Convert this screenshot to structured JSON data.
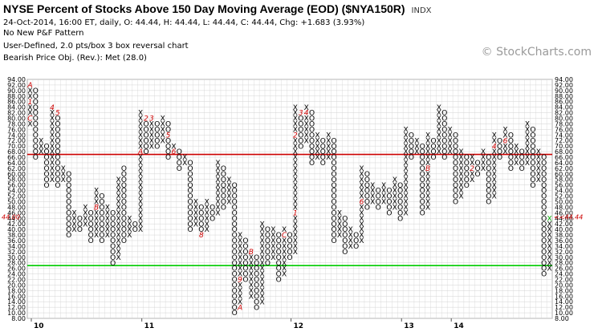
{
  "header": {
    "title": "NYSE Percent of Stocks Above 150 Day Moving Average (EOD) ($NYA150R)",
    "symbol": "INDX",
    "line2": "24-Oct-2014, 16:00 ET, daily, O: 44.44, H: 44.44, L: 44.44, C: 44.44, Chg: +1.683 (3.93%)",
    "line3": "No New P&F Pattern",
    "line4": "User-Defined, 2.0 pts/box 3 box reversal chart",
    "line5": "Bearish Price Obj. (Rev.): Met (28.0)",
    "watermark": "© StockCharts.com"
  },
  "chart_data": {
    "type": "point-and-figure",
    "box_size": 2.0,
    "reversal": 3,
    "ylim": [
      8,
      94
    ],
    "y_ticks": [
      "8.00",
      "10.00",
      "12.00",
      "14.00",
      "16.00",
      "18.00",
      "20.00",
      "22.00",
      "24.00",
      "26.00",
      "28.00",
      "30.00",
      "32.00",
      "34.00",
      "36.00",
      "38.00",
      "40.00",
      "42.00",
      "44.00",
      "46.00",
      "48.00",
      "50.00",
      "52.00",
      "54.00",
      "56.00",
      "58.00",
      "60.00",
      "62.00",
      "64.00",
      "66.00",
      "68.00",
      "70.00",
      "72.00",
      "74.00",
      "76.00",
      "78.00",
      "80.00",
      "82.00",
      "84.00",
      "86.00",
      "88.00",
      "90.00",
      "92.00",
      "94.00"
    ],
    "x_labels": [
      {
        "label": "10",
        "column": 0
      },
      {
        "label": "11",
        "column": 20
      },
      {
        "label": "12",
        "column": 47
      },
      {
        "label": "13",
        "column": 67
      },
      {
        "label": "14",
        "column": 76
      }
    ],
    "last_price_label": "44.00",
    "last_price_label_right": "44.44",
    "reference_lines": [
      {
        "value": 67,
        "color": "#cc0000"
      },
      {
        "value": 27,
        "color": "#00cc00"
      }
    ],
    "columns": [
      {
        "t": "X",
        "lo": 78,
        "hi": 92
      },
      {
        "t": "O",
        "lo": 66,
        "hi": 90
      },
      {
        "t": "X",
        "lo": 68,
        "hi": 72
      },
      {
        "t": "O",
        "lo": 56,
        "hi": 70
      },
      {
        "t": "X",
        "lo": 58,
        "hi": 84
      },
      {
        "t": "O",
        "lo": 56,
        "hi": 82
      },
      {
        "t": "X",
        "lo": 58,
        "hi": 62
      },
      {
        "t": "O",
        "lo": 38,
        "hi": 60
      },
      {
        "t": "X",
        "lo": 40,
        "hi": 46
      },
      {
        "t": "O",
        "lo": 40,
        "hi": 44
      },
      {
        "t": "X",
        "lo": 42,
        "hi": 48
      },
      {
        "t": "O",
        "lo": 36,
        "hi": 46
      },
      {
        "t": "X",
        "lo": 38,
        "hi": 54
      },
      {
        "t": "O",
        "lo": 36,
        "hi": 52
      },
      {
        "t": "X",
        "lo": 38,
        "hi": 48
      },
      {
        "t": "O",
        "lo": 28,
        "hi": 46
      },
      {
        "t": "X",
        "lo": 30,
        "hi": 58
      },
      {
        "t": "O",
        "lo": 36,
        "hi": 62
      },
      {
        "t": "X",
        "lo": 38,
        "hi": 44
      },
      {
        "t": "O",
        "lo": 40,
        "hi": 42
      },
      {
        "t": "X",
        "lo": 40,
        "hi": 82
      },
      {
        "t": "O",
        "lo": 68,
        "hi": 80
      },
      {
        "t": "X",
        "lo": 70,
        "hi": 80
      },
      {
        "t": "O",
        "lo": 70,
        "hi": 78
      },
      {
        "t": "X",
        "lo": 72,
        "hi": 80
      },
      {
        "t": "O",
        "lo": 66,
        "hi": 78
      },
      {
        "t": "X",
        "lo": 68,
        "hi": 70
      },
      {
        "t": "O",
        "lo": 62,
        "hi": 68
      },
      {
        "t": "X",
        "lo": 64,
        "hi": 66
      },
      {
        "t": "O",
        "lo": 40,
        "hi": 64
      },
      {
        "t": "X",
        "lo": 42,
        "hi": 50
      },
      {
        "t": "O",
        "lo": 38,
        "hi": 48
      },
      {
        "t": "X",
        "lo": 40,
        "hi": 50
      },
      {
        "t": "O",
        "lo": 44,
        "hi": 48
      },
      {
        "t": "X",
        "lo": 46,
        "hi": 64
      },
      {
        "t": "O",
        "lo": 48,
        "hi": 62
      },
      {
        "t": "X",
        "lo": 50,
        "hi": 58
      },
      {
        "t": "O",
        "lo": 10,
        "hi": 56
      },
      {
        "t": "X",
        "lo": 12,
        "hi": 38
      },
      {
        "t": "O",
        "lo": 22,
        "hi": 36
      },
      {
        "t": "X",
        "lo": 16,
        "hi": 32
      },
      {
        "t": "O",
        "lo": 12,
        "hi": 30
      },
      {
        "t": "X",
        "lo": 14,
        "hi": 42
      },
      {
        "t": "O",
        "lo": 28,
        "hi": 40
      },
      {
        "t": "X",
        "lo": 30,
        "hi": 40
      },
      {
        "t": "O",
        "lo": 22,
        "hi": 38
      },
      {
        "t": "X",
        "lo": 24,
        "hi": 40
      },
      {
        "t": "O",
        "lo": 30,
        "hi": 38
      },
      {
        "t": "X",
        "lo": 32,
        "hi": 84
      },
      {
        "t": "O",
        "lo": 70,
        "hi": 82
      },
      {
        "t": "X",
        "lo": 72,
        "hi": 84
      },
      {
        "t": "O",
        "lo": 64,
        "hi": 82
      },
      {
        "t": "X",
        "lo": 66,
        "hi": 74
      },
      {
        "t": "O",
        "lo": 64,
        "hi": 72
      },
      {
        "t": "X",
        "lo": 66,
        "hi": 74
      },
      {
        "t": "O",
        "lo": 36,
        "hi": 72
      },
      {
        "t": "X",
        "lo": 38,
        "hi": 46
      },
      {
        "t": "O",
        "lo": 32,
        "hi": 44
      },
      {
        "t": "X",
        "lo": 34,
        "hi": 40
      },
      {
        "t": "O",
        "lo": 34,
        "hi": 38
      },
      {
        "t": "X",
        "lo": 36,
        "hi": 62
      },
      {
        "t": "O",
        "lo": 48,
        "hi": 60
      },
      {
        "t": "X",
        "lo": 50,
        "hi": 56
      },
      {
        "t": "O",
        "lo": 48,
        "hi": 54
      },
      {
        "t": "X",
        "lo": 50,
        "hi": 56
      },
      {
        "t": "O",
        "lo": 46,
        "hi": 54
      },
      {
        "t": "X",
        "lo": 48,
        "hi": 58
      },
      {
        "t": "O",
        "lo": 44,
        "hi": 56
      },
      {
        "t": "X",
        "lo": 46,
        "hi": 76
      },
      {
        "t": "O",
        "lo": 66,
        "hi": 74
      },
      {
        "t": "X",
        "lo": 68,
        "hi": 72
      },
      {
        "t": "O",
        "lo": 46,
        "hi": 70
      },
      {
        "t": "X",
        "lo": 48,
        "hi": 74
      },
      {
        "t": "O",
        "lo": 66,
        "hi": 72
      },
      {
        "t": "X",
        "lo": 68,
        "hi": 84
      },
      {
        "t": "O",
        "lo": 66,
        "hi": 82
      },
      {
        "t": "X",
        "lo": 68,
        "hi": 76
      },
      {
        "t": "O",
        "lo": 50,
        "hi": 74
      },
      {
        "t": "X",
        "lo": 52,
        "hi": 68
      },
      {
        "t": "O",
        "lo": 56,
        "hi": 66
      },
      {
        "t": "X",
        "lo": 58,
        "hi": 66
      },
      {
        "t": "O",
        "lo": 60,
        "hi": 64
      },
      {
        "t": "X",
        "lo": 62,
        "hi": 68
      },
      {
        "t": "O",
        "lo": 50,
        "hi": 66
      },
      {
        "t": "X",
        "lo": 52,
        "hi": 74
      },
      {
        "t": "O",
        "lo": 66,
        "hi": 72
      },
      {
        "t": "X",
        "lo": 68,
        "hi": 76
      },
      {
        "t": "O",
        "lo": 62,
        "hi": 74
      },
      {
        "t": "X",
        "lo": 64,
        "hi": 70
      },
      {
        "t": "O",
        "lo": 62,
        "hi": 68
      },
      {
        "t": "X",
        "lo": 64,
        "hi": 78
      },
      {
        "t": "O",
        "lo": 56,
        "hi": 76
      },
      {
        "t": "X",
        "lo": 58,
        "hi": 68
      },
      {
        "t": "O",
        "lo": 24,
        "hi": 66
      },
      {
        "t": "X",
        "lo": 26,
        "hi": 44
      }
    ],
    "month_marks": [
      {
        "c": 0,
        "v": 92,
        "t": "A"
      },
      {
        "c": 0,
        "v": 86,
        "t": "1"
      },
      {
        "c": 0,
        "v": 80,
        "t": "C"
      },
      {
        "c": 4,
        "v": 84,
        "t": "4"
      },
      {
        "c": 5,
        "v": 82,
        "t": "5"
      },
      {
        "c": 9,
        "v": 48,
        "t": "6"
      },
      {
        "c": 12,
        "v": 48,
        "t": "B"
      },
      {
        "c": 20,
        "v": 84,
        "t": "1"
      },
      {
        "c": 21,
        "v": 80,
        "t": "2"
      },
      {
        "c": 22,
        "v": 80,
        "t": "3"
      },
      {
        "c": 23,
        "v": 80,
        "t": "4"
      },
      {
        "c": 25,
        "v": 74,
        "t": "5"
      },
      {
        "c": 26,
        "v": 68,
        "t": "6"
      },
      {
        "c": 20,
        "v": 68,
        "t": "A"
      },
      {
        "c": 31,
        "v": 38,
        "t": "8"
      },
      {
        "c": 38,
        "v": 22,
        "t": "9"
      },
      {
        "c": 38,
        "v": 12,
        "t": "A"
      },
      {
        "c": 40,
        "v": 32,
        "t": "B"
      },
      {
        "c": 46,
        "v": 38,
        "t": "C"
      },
      {
        "c": 48,
        "v": 46,
        "t": "1"
      },
      {
        "c": 49,
        "v": 82,
        "t": "3"
      },
      {
        "c": 50,
        "v": 82,
        "t": "4"
      },
      {
        "c": 48,
        "v": 74,
        "t": "2"
      },
      {
        "c": 60,
        "v": 50,
        "t": "6"
      },
      {
        "c": 64,
        "v": 62,
        "t": "9"
      },
      {
        "c": 66,
        "v": 68,
        "t": "A"
      },
      {
        "c": 70,
        "v": 82,
        "t": "2"
      },
      {
        "c": 72,
        "v": 62,
        "t": "B"
      },
      {
        "c": 73,
        "v": 52,
        "t": "9"
      },
      {
        "c": 78,
        "v": 72,
        "t": "1"
      },
      {
        "c": 80,
        "v": 62,
        "t": "2"
      },
      {
        "c": 81,
        "v": 76,
        "t": "3"
      },
      {
        "c": 84,
        "v": 70,
        "t": "4"
      },
      {
        "c": 87,
        "v": 78,
        "t": "7"
      },
      {
        "c": 86,
        "v": 72,
        "t": "6"
      },
      {
        "c": 88,
        "v": 56,
        "t": "8"
      },
      {
        "c": 89,
        "v": 44,
        "t": "A"
      }
    ]
  },
  "colors": {
    "grid": "#d3d3d3",
    "x_mark": "#000000",
    "o_mark": "#000000",
    "month_mark": "#cc0000",
    "last_x": "#00aa00",
    "price_label": "#cc0000",
    "resistance": "#cc0000",
    "support": "#00cc00"
  }
}
